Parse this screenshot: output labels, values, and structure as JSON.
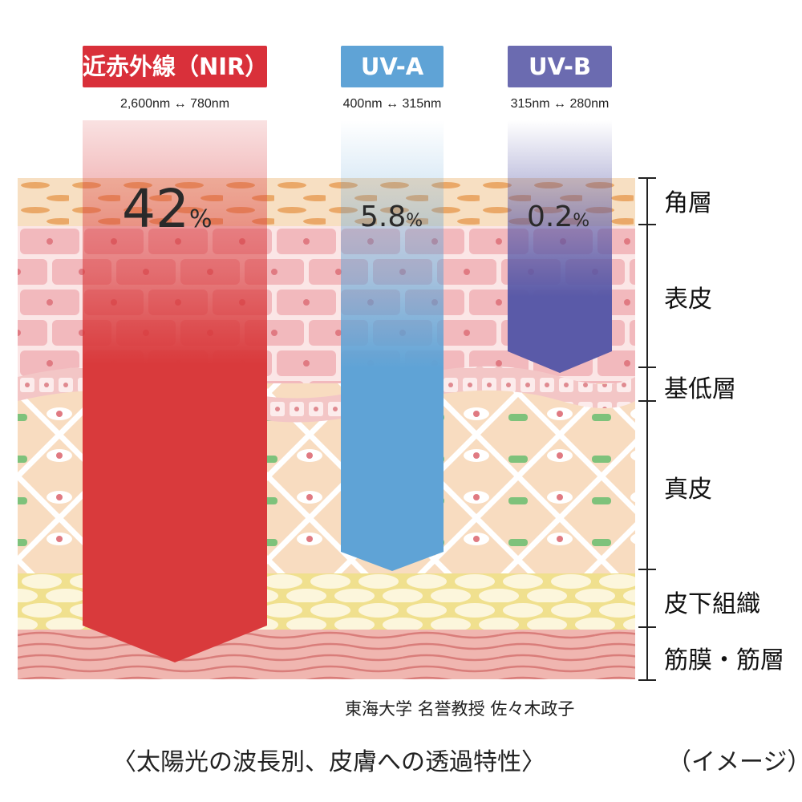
{
  "bands": [
    {
      "id": "nir",
      "label": "近赤外線（NIR）",
      "range": "2,600nm ↔ 780nm",
      "percent": "42",
      "unit": "%",
      "color": "#d93a3c"
    },
    {
      "id": "uva",
      "label": "UV-A",
      "range": "400nm ↔ 315nm",
      "percent": "5.8",
      "unit": "%",
      "color": "#5fa3d6"
    },
    {
      "id": "uvb",
      "label": "UV-B",
      "range": "315nm ↔ 280nm",
      "percent": "0.2",
      "unit": "%",
      "color": "#6a6aae"
    }
  ],
  "layers": [
    "角層",
    "表皮",
    "基低層",
    "真皮",
    "皮下組織",
    "筋膜・筋層"
  ],
  "credit": "東海大学 名誉教授 佐々木政子",
  "caption": "〈太陽光の波長別、皮膚への透過特性〉",
  "image_note": "（イメージ）"
}
